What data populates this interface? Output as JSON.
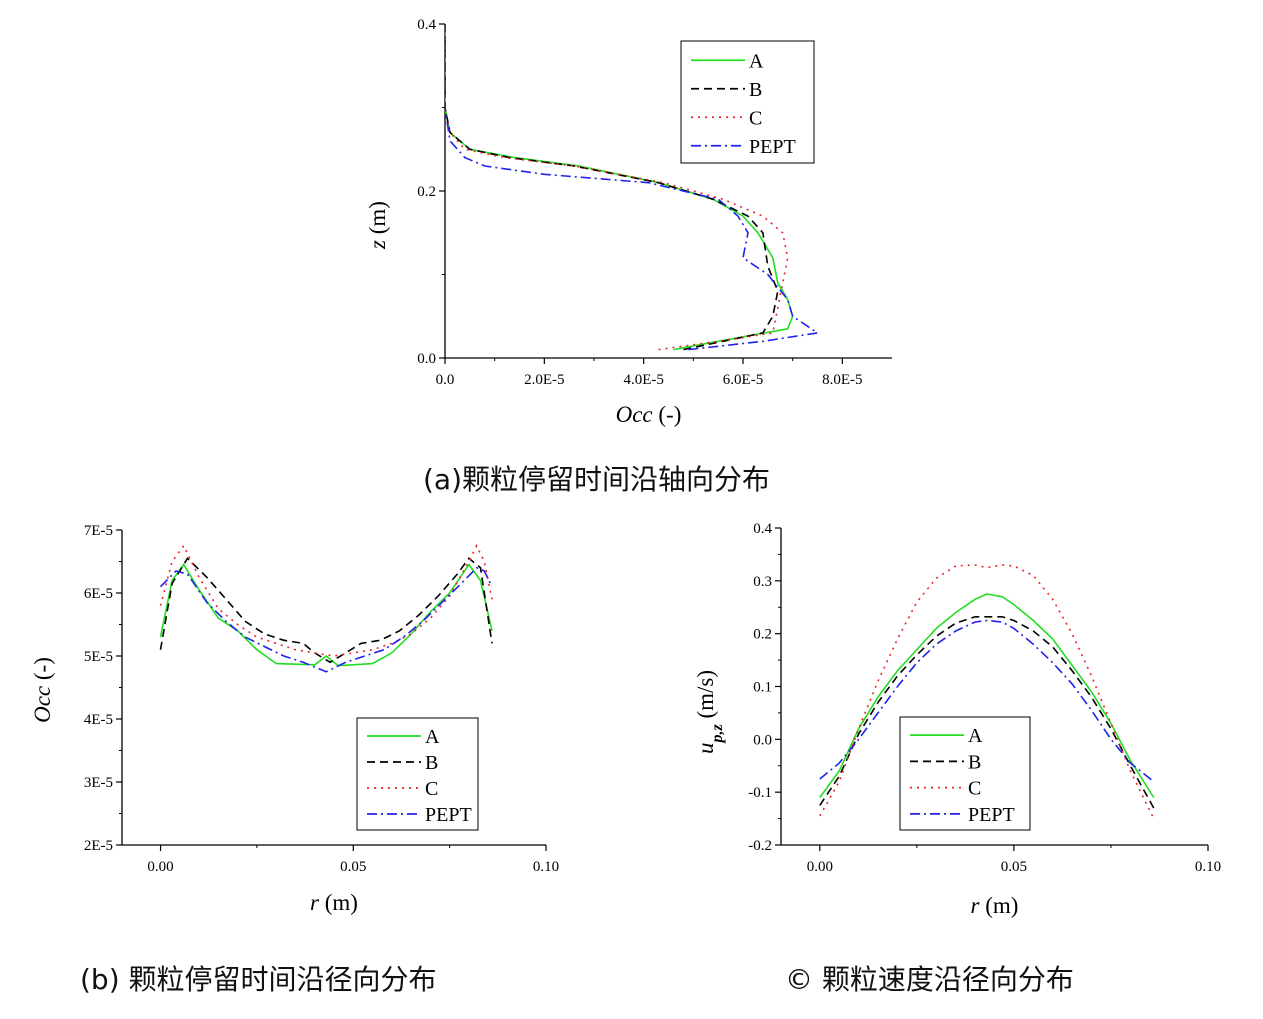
{
  "captions": {
    "a": "(a)颗粒停留时间沿轴向分布",
    "b": "(b)  颗粒停留时间沿径向分布",
    "c": "©  颗粒速度沿径向分布"
  },
  "chart_data": [
    {
      "id": "a",
      "type": "line",
      "xlabel": "Occ (-)",
      "ylabel": "z (m)",
      "xlim": [
        0,
        9e-05
      ],
      "ylim": [
        0,
        0.4
      ],
      "xticks": [
        0,
        2e-05,
        4e-05,
        6e-05,
        8e-05
      ],
      "xtick_labels": [
        "0.0",
        "2.0E-5",
        "4.0E-5",
        "6.0E-5",
        "8.0E-5"
      ],
      "yticks": [
        0,
        0.2,
        0.4
      ],
      "ytick_labels": [
        "0.0",
        "0.2",
        "0.4"
      ],
      "legend": [
        "A",
        "B",
        "C",
        "PEPT"
      ],
      "legend_position": "top-right",
      "series": [
        {
          "name": "A",
          "color": "#22dd22",
          "dash": "solid",
          "points": [
            [
              4.6e-05,
              0.01
            ],
            [
              5.5e-05,
              0.02
            ],
            [
              6.9e-05,
              0.035
            ],
            [
              7e-05,
              0.05
            ],
            [
              6.9e-05,
              0.07
            ],
            [
              6.7e-05,
              0.09
            ],
            [
              6.6e-05,
              0.12
            ],
            [
              6.3e-05,
              0.15
            ],
            [
              6e-05,
              0.17
            ],
            [
              5.4e-05,
              0.19
            ],
            [
              4.3e-05,
              0.21
            ],
            [
              2.7e-05,
              0.23
            ],
            [
              1.4e-05,
              0.24
            ],
            [
              5e-06,
              0.25
            ],
            [
              1e-06,
              0.27
            ],
            [
              0,
              0.3
            ],
            [
              0,
              0.4
            ]
          ]
        },
        {
          "name": "B",
          "color": "#000000",
          "dash": "dashed",
          "points": [
            [
              4.8e-05,
              0.01
            ],
            [
              5.6e-05,
              0.02
            ],
            [
              6.4e-05,
              0.03
            ],
            [
              6.6e-05,
              0.05
            ],
            [
              6.7e-05,
              0.08
            ],
            [
              6.5e-05,
              0.11
            ],
            [
              6.4e-05,
              0.15
            ],
            [
              6.1e-05,
              0.17
            ],
            [
              5.4e-05,
              0.19
            ],
            [
              4.3e-05,
              0.21
            ],
            [
              2.6e-05,
              0.23
            ],
            [
              1.3e-05,
              0.24
            ],
            [
              5e-06,
              0.25
            ],
            [
              1e-06,
              0.27
            ],
            [
              0,
              0.3
            ],
            [
              0,
              0.4
            ]
          ]
        },
        {
          "name": "C",
          "color": "#ee2222",
          "dash": "dotted",
          "points": [
            [
              4.3e-05,
              0.01
            ],
            [
              5.5e-05,
              0.02
            ],
            [
              6.6e-05,
              0.03
            ],
            [
              6.7e-05,
              0.06
            ],
            [
              6.8e-05,
              0.09
            ],
            [
              6.9e-05,
              0.12
            ],
            [
              6.8e-05,
              0.15
            ],
            [
              6.4e-05,
              0.17
            ],
            [
              5.6e-05,
              0.19
            ],
            [
              4.4e-05,
              0.21
            ],
            [
              2.6e-05,
              0.23
            ],
            [
              1.2e-05,
              0.24
            ],
            [
              4e-06,
              0.25
            ],
            [
              1e-06,
              0.27
            ],
            [
              0,
              0.3
            ],
            [
              0,
              0.4
            ]
          ]
        },
        {
          "name": "PEPT",
          "color": "#2222ee",
          "dash": "dashdot",
          "points": [
            [
              4.9e-05,
              0.01
            ],
            [
              6.4e-05,
              0.02
            ],
            [
              7.5e-05,
              0.03
            ],
            [
              7e-05,
              0.05
            ],
            [
              6.9e-05,
              0.07
            ],
            [
              6.5e-05,
              0.1
            ],
            [
              6e-05,
              0.12
            ],
            [
              6.1e-05,
              0.15
            ],
            [
              5.9e-05,
              0.17
            ],
            [
              5.5e-05,
              0.19
            ],
            [
              4.1e-05,
              0.21
            ],
            [
              2e-05,
              0.22
            ],
            [
              8e-06,
              0.23
            ],
            [
              4e-06,
              0.24
            ],
            [
              1e-06,
              0.26
            ],
            [
              0,
              0.3
            ],
            [
              0,
              0.4
            ]
          ]
        }
      ]
    },
    {
      "id": "b",
      "type": "line",
      "xlabel": "r (m)",
      "ylabel": "Occ (-)",
      "xlim": [
        -0.01,
        0.1
      ],
      "ylim": [
        2e-05,
        7e-05
      ],
      "xticks": [
        0,
        0.05,
        0.1
      ],
      "xtick_labels": [
        "0.00",
        "0.05",
        "0.10"
      ],
      "yticks": [
        2e-05,
        3e-05,
        4e-05,
        5e-05,
        6e-05,
        7e-05
      ],
      "ytick_labels": [
        "2E-5",
        "3E-5",
        "4E-5",
        "5E-5",
        "6E-5",
        "7E-5"
      ],
      "legend": [
        "A",
        "B",
        "C",
        "PEPT"
      ],
      "legend_position": "bottom-right",
      "series": [
        {
          "name": "A",
          "color": "#22dd22",
          "dash": "solid",
          "points": [
            [
              0,
              5.3e-05
            ],
            [
              0.003,
              6.2e-05
            ],
            [
              0.006,
              6.45e-05
            ],
            [
              0.01,
              6.05e-05
            ],
            [
              0.015,
              5.6e-05
            ],
            [
              0.02,
              5.4e-05
            ],
            [
              0.025,
              5.1e-05
            ],
            [
              0.03,
              4.88e-05
            ],
            [
              0.035,
              4.87e-05
            ],
            [
              0.04,
              4.86e-05
            ],
            [
              0.043,
              5e-05
            ],
            [
              0.046,
              4.85e-05
            ],
            [
              0.05,
              4.86e-05
            ],
            [
              0.055,
              4.88e-05
            ],
            [
              0.06,
              5.05e-05
            ],
            [
              0.065,
              5.35e-05
            ],
            [
              0.07,
              5.7e-05
            ],
            [
              0.075,
              6e-05
            ],
            [
              0.08,
              6.45e-05
            ],
            [
              0.083,
              6.2e-05
            ],
            [
              0.086,
              5.4e-05
            ]
          ]
        },
        {
          "name": "B",
          "color": "#000000",
          "dash": "dashed",
          "points": [
            [
              0,
              5.1e-05
            ],
            [
              0.003,
              6.15e-05
            ],
            [
              0.007,
              6.55e-05
            ],
            [
              0.012,
              6.25e-05
            ],
            [
              0.017,
              5.9e-05
            ],
            [
              0.022,
              5.55e-05
            ],
            [
              0.027,
              5.35e-05
            ],
            [
              0.032,
              5.25e-05
            ],
            [
              0.037,
              5.2e-05
            ],
            [
              0.04,
              5.05e-05
            ],
            [
              0.044,
              4.9e-05
            ],
            [
              0.048,
              5.05e-05
            ],
            [
              0.052,
              5.2e-05
            ],
            [
              0.057,
              5.25e-05
            ],
            [
              0.062,
              5.4e-05
            ],
            [
              0.067,
              5.65e-05
            ],
            [
              0.072,
              5.95e-05
            ],
            [
              0.077,
              6.3e-05
            ],
            [
              0.08,
              6.55e-05
            ],
            [
              0.083,
              6.4e-05
            ],
            [
              0.086,
              5.2e-05
            ]
          ]
        },
        {
          "name": "C",
          "color": "#ee2222",
          "dash": "dotted",
          "points": [
            [
              0,
              5.8e-05
            ],
            [
              0.003,
              6.5e-05
            ],
            [
              0.006,
              6.75e-05
            ],
            [
              0.01,
              6.25e-05
            ],
            [
              0.015,
              5.75e-05
            ],
            [
              0.02,
              5.5e-05
            ],
            [
              0.025,
              5.3e-05
            ],
            [
              0.03,
              5.2e-05
            ],
            [
              0.035,
              5.1e-05
            ],
            [
              0.04,
              5.05e-05
            ],
            [
              0.045,
              5e-05
            ],
            [
              0.05,
              5.05e-05
            ],
            [
              0.055,
              5.1e-05
            ],
            [
              0.06,
              5.2e-05
            ],
            [
              0.065,
              5.35e-05
            ],
            [
              0.07,
              5.6e-05
            ],
            [
              0.075,
              5.95e-05
            ],
            [
              0.08,
              6.5e-05
            ],
            [
              0.082,
              6.75e-05
            ],
            [
              0.084,
              6.5e-05
            ],
            [
              0.086,
              5.9e-05
            ]
          ]
        },
        {
          "name": "PEPT",
          "color": "#2222ee",
          "dash": "dashdot",
          "points": [
            [
              0,
              6.1e-05
            ],
            [
              0.004,
              6.35e-05
            ],
            [
              0.007,
              6.3e-05
            ],
            [
              0.012,
              5.85e-05
            ],
            [
              0.017,
              5.55e-05
            ],
            [
              0.022,
              5.3e-05
            ],
            [
              0.027,
              5.15e-05
            ],
            [
              0.032,
              5e-05
            ],
            [
              0.037,
              4.9e-05
            ],
            [
              0.043,
              4.75e-05
            ],
            [
              0.048,
              4.9e-05
            ],
            [
              0.053,
              5e-05
            ],
            [
              0.058,
              5.1e-05
            ],
            [
              0.063,
              5.3e-05
            ],
            [
              0.068,
              5.55e-05
            ],
            [
              0.073,
              5.85e-05
            ],
            [
              0.078,
              6.15e-05
            ],
            [
              0.082,
              6.4e-05
            ],
            [
              0.084,
              6.35e-05
            ],
            [
              0.086,
              6.1e-05
            ]
          ]
        }
      ]
    },
    {
      "id": "c",
      "type": "line",
      "xlabel": "r (m)",
      "ylabel": "u_p,z (m/s)",
      "xlim": [
        -0.01,
        0.1
      ],
      "ylim": [
        -0.2,
        0.4
      ],
      "xticks": [
        0,
        0.05,
        0.1
      ],
      "xtick_labels": [
        "0.00",
        "0.05",
        "0.10"
      ],
      "yticks": [
        -0.2,
        -0.1,
        0.0,
        0.1,
        0.2,
        0.3,
        0.4
      ],
      "ytick_labels": [
        "-0.2",
        "-0.1",
        "0.0",
        "0.1",
        "0.2",
        "0.3",
        "0.4"
      ],
      "legend": [
        "A",
        "B",
        "C",
        "PEPT"
      ],
      "legend_position": "bottom-right",
      "series": [
        {
          "name": "A",
          "color": "#22dd22",
          "dash": "solid",
          "points": [
            [
              0,
              -0.11
            ],
            [
              0.005,
              -0.06
            ],
            [
              0.01,
              0.02
            ],
            [
              0.015,
              0.08
            ],
            [
              0.02,
              0.13
            ],
            [
              0.025,
              0.17
            ],
            [
              0.03,
              0.21
            ],
            [
              0.035,
              0.24
            ],
            [
              0.04,
              0.265
            ],
            [
              0.043,
              0.275
            ],
            [
              0.047,
              0.27
            ],
            [
              0.05,
              0.255
            ],
            [
              0.055,
              0.225
            ],
            [
              0.06,
              0.19
            ],
            [
              0.065,
              0.14
            ],
            [
              0.07,
              0.09
            ],
            [
              0.075,
              0.03
            ],
            [
              0.08,
              -0.04
            ],
            [
              0.086,
              -0.11
            ]
          ]
        },
        {
          "name": "B",
          "color": "#000000",
          "dash": "dashed",
          "points": [
            [
              0,
              -0.125
            ],
            [
              0.005,
              -0.07
            ],
            [
              0.01,
              0.01
            ],
            [
              0.015,
              0.07
            ],
            [
              0.02,
              0.12
            ],
            [
              0.025,
              0.16
            ],
            [
              0.03,
              0.195
            ],
            [
              0.035,
              0.22
            ],
            [
              0.04,
              0.232
            ],
            [
              0.043,
              0.232
            ],
            [
              0.047,
              0.232
            ],
            [
              0.05,
              0.225
            ],
            [
              0.055,
              0.205
            ],
            [
              0.06,
              0.175
            ],
            [
              0.065,
              0.13
            ],
            [
              0.07,
              0.08
            ],
            [
              0.075,
              0.02
            ],
            [
              0.08,
              -0.05
            ],
            [
              0.086,
              -0.13
            ]
          ]
        },
        {
          "name": "C",
          "color": "#ee2222",
          "dash": "dotted",
          "points": [
            [
              0,
              -0.145
            ],
            [
              0.005,
              -0.08
            ],
            [
              0.01,
              0.02
            ],
            [
              0.015,
              0.11
            ],
            [
              0.02,
              0.19
            ],
            [
              0.025,
              0.26
            ],
            [
              0.03,
              0.305
            ],
            [
              0.035,
              0.328
            ],
            [
              0.04,
              0.33
            ],
            [
              0.043,
              0.325
            ],
            [
              0.047,
              0.33
            ],
            [
              0.05,
              0.328
            ],
            [
              0.055,
              0.31
            ],
            [
              0.06,
              0.265
            ],
            [
              0.065,
              0.2
            ],
            [
              0.07,
              0.12
            ],
            [
              0.075,
              0.03
            ],
            [
              0.08,
              -0.06
            ],
            [
              0.086,
              -0.15
            ]
          ]
        },
        {
          "name": "PEPT",
          "color": "#2222ee",
          "dash": "dashdot",
          "points": [
            [
              0,
              -0.075
            ],
            [
              0.005,
              -0.045
            ],
            [
              0.01,
              0.0
            ],
            [
              0.015,
              0.05
            ],
            [
              0.02,
              0.1
            ],
            [
              0.025,
              0.145
            ],
            [
              0.03,
              0.18
            ],
            [
              0.035,
              0.205
            ],
            [
              0.04,
              0.222
            ],
            [
              0.043,
              0.225
            ],
            [
              0.047,
              0.222
            ],
            [
              0.05,
              0.21
            ],
            [
              0.055,
              0.18
            ],
            [
              0.06,
              0.145
            ],
            [
              0.065,
              0.105
            ],
            [
              0.07,
              0.055
            ],
            [
              0.075,
              0.0
            ],
            [
              0.08,
              -0.045
            ],
            [
              0.086,
              -0.08
            ]
          ]
        }
      ]
    }
  ]
}
